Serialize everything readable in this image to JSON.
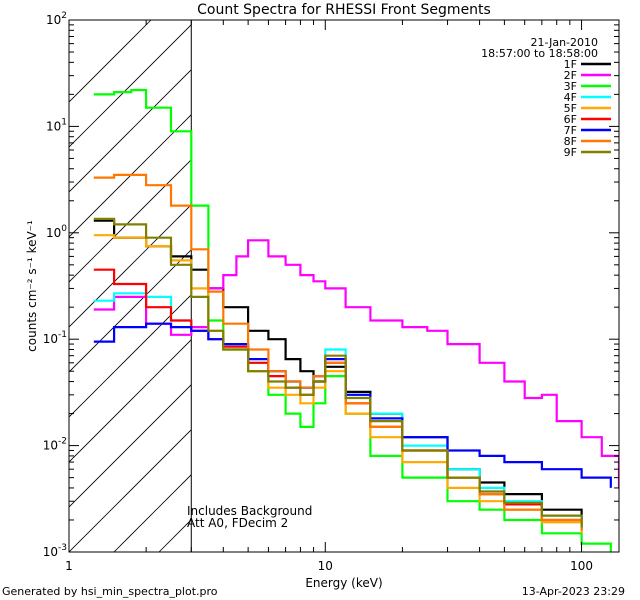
{
  "chart_data": {
    "type": "line",
    "title": "Count Spectra for RHESSI Front Segments",
    "xlabel": "Energy (keV)",
    "ylabel": "counts cm⁻² s⁻¹ keV⁻¹",
    "xscale": "log",
    "yscale": "log",
    "xlim": [
      1,
      140
    ],
    "ylim": [
      0.001,
      100
    ],
    "x_tick_labels": [
      {
        "value": 1,
        "text": "1"
      },
      {
        "value": 10,
        "text": "10"
      },
      {
        "value": 100,
        "text": "100"
      }
    ],
    "y_tick_labels": [
      {
        "value": 0.001,
        "base": "10",
        "exp": "-3"
      },
      {
        "value": 0.01,
        "base": "10",
        "exp": "-2"
      },
      {
        "value": 0.1,
        "base": "10",
        "exp": "-1"
      },
      {
        "value": 1,
        "base": "10",
        "exp": "0"
      },
      {
        "value": 10,
        "base": "10",
        "exp": "1"
      },
      {
        "value": 100,
        "base": "10",
        "exp": "2"
      }
    ],
    "excluded_region": {
      "from": 1,
      "to": 3,
      "style": "hatched"
    },
    "date": "21-Jan-2010",
    "time_range": "18:57:00 to 18:58:00",
    "annotations": [
      "Includes Background",
      "Att A0, FDecim 2"
    ],
    "series": [
      {
        "name": "1F",
        "color": "#000000",
        "points": [
          [
            1.25,
            1.3
          ],
          [
            1.5,
            0.9
          ],
          [
            2,
            0.75
          ],
          [
            2.5,
            0.6
          ],
          [
            3,
            0.45
          ],
          [
            3.5,
            0.3
          ],
          [
            4,
            0.2
          ],
          [
            5,
            0.12
          ],
          [
            6,
            0.1
          ],
          [
            7,
            0.065
          ],
          [
            8,
            0.05
          ],
          [
            9,
            0.04
          ],
          [
            10,
            0.055
          ],
          [
            12,
            0.032
          ],
          [
            15,
            0.02
          ],
          [
            20,
            0.012
          ],
          [
            30,
            0.006
          ],
          [
            40,
            0.0045
          ],
          [
            50,
            0.0035
          ],
          [
            70,
            0.0025
          ],
          [
            100,
            0.002
          ]
        ]
      },
      {
        "name": "2F",
        "color": "#ff00ff",
        "points": [
          [
            1.25,
            0.19
          ],
          [
            1.5,
            0.25
          ],
          [
            2,
            0.14
          ],
          [
            2.5,
            0.11
          ],
          [
            3,
            0.13
          ],
          [
            3.5,
            0.3
          ],
          [
            4,
            0.4
          ],
          [
            4.5,
            0.6
          ],
          [
            5,
            0.85
          ],
          [
            6,
            0.6
          ],
          [
            7,
            0.5
          ],
          [
            8,
            0.4
          ],
          [
            9,
            0.35
          ],
          [
            10,
            0.3
          ],
          [
            12,
            0.2
          ],
          [
            15,
            0.15
          ],
          [
            20,
            0.13
          ],
          [
            25,
            0.12
          ],
          [
            30,
            0.09
          ],
          [
            40,
            0.06
          ],
          [
            50,
            0.04
          ],
          [
            60,
            0.028
          ],
          [
            70,
            0.03
          ],
          [
            80,
            0.017
          ],
          [
            100,
            0.012
          ],
          [
            120,
            0.008
          ],
          [
            140,
            0.004
          ]
        ]
      },
      {
        "name": "3F",
        "color": "#00ff00",
        "points": [
          [
            1.25,
            20
          ],
          [
            1.5,
            21
          ],
          [
            1.75,
            22
          ],
          [
            2,
            15
          ],
          [
            2.5,
            9
          ],
          [
            3,
            1.8
          ],
          [
            3.5,
            0.15
          ],
          [
            4,
            0.08
          ],
          [
            5,
            0.05
          ],
          [
            6,
            0.03
          ],
          [
            7,
            0.02
          ],
          [
            8,
            0.015
          ],
          [
            9,
            0.025
          ],
          [
            10,
            0.045
          ],
          [
            12,
            0.02
          ],
          [
            15,
            0.008
          ],
          [
            20,
            0.005
          ],
          [
            30,
            0.003
          ],
          [
            40,
            0.0025
          ],
          [
            50,
            0.002
          ],
          [
            70,
            0.0015
          ],
          [
            100,
            0.0012
          ],
          [
            130,
            0.001
          ]
        ]
      },
      {
        "name": "4F",
        "color": "#00ffff",
        "points": [
          [
            1.25,
            0.23
          ],
          [
            1.5,
            0.27
          ],
          [
            2,
            0.25
          ],
          [
            2.5,
            0.15
          ],
          [
            3,
            0.12
          ],
          [
            3.5,
            0.1
          ],
          [
            4,
            0.09
          ],
          [
            5,
            0.06
          ],
          [
            6,
            0.045
          ],
          [
            7,
            0.04
          ],
          [
            8,
            0.035
          ],
          [
            9,
            0.045
          ],
          [
            10,
            0.08
          ],
          [
            12,
            0.03
          ],
          [
            15,
            0.02
          ],
          [
            20,
            0.01
          ],
          [
            30,
            0.006
          ],
          [
            40,
            0.004
          ],
          [
            50,
            0.003
          ],
          [
            70,
            0.0022
          ],
          [
            100,
            0.0017
          ]
        ]
      },
      {
        "name": "5F",
        "color": "#ffaa00",
        "points": [
          [
            1.25,
            0.95
          ],
          [
            1.5,
            0.9
          ],
          [
            2,
            0.75
          ],
          [
            2.5,
            0.55
          ],
          [
            3,
            0.3
          ],
          [
            3.5,
            0.12
          ],
          [
            4,
            0.08
          ],
          [
            5,
            0.05
          ],
          [
            6,
            0.035
          ],
          [
            7,
            0.03
          ],
          [
            8,
            0.025
          ],
          [
            9,
            0.035
          ],
          [
            10,
            0.05
          ],
          [
            12,
            0.02
          ],
          [
            15,
            0.012
          ],
          [
            20,
            0.007
          ],
          [
            30,
            0.004
          ],
          [
            40,
            0.003
          ],
          [
            50,
            0.0025
          ],
          [
            70,
            0.0019
          ],
          [
            100,
            0.0015
          ]
        ]
      },
      {
        "name": "6F",
        "color": "#ff0000",
        "points": [
          [
            1.25,
            0.45
          ],
          [
            1.5,
            0.33
          ],
          [
            2,
            0.2
          ],
          [
            2.5,
            0.15
          ],
          [
            3,
            0.12
          ],
          [
            3.5,
            0.1
          ],
          [
            4,
            0.085
          ],
          [
            5,
            0.06
          ],
          [
            6,
            0.045
          ],
          [
            7,
            0.035
          ],
          [
            8,
            0.03
          ],
          [
            9,
            0.04
          ],
          [
            10,
            0.06
          ],
          [
            12,
            0.025
          ],
          [
            15,
            0.015
          ],
          [
            20,
            0.009
          ],
          [
            30,
            0.005
          ],
          [
            40,
            0.0035
          ],
          [
            50,
            0.0028
          ],
          [
            70,
            0.002
          ],
          [
            100,
            0.0016
          ]
        ]
      },
      {
        "name": "7F",
        "color": "#0000ff",
        "points": [
          [
            1.25,
            0.095
          ],
          [
            1.5,
            0.13
          ],
          [
            2,
            0.14
          ],
          [
            2.5,
            0.13
          ],
          [
            3,
            0.12
          ],
          [
            3.5,
            0.1
          ],
          [
            4,
            0.09
          ],
          [
            5,
            0.065
          ],
          [
            6,
            0.05
          ],
          [
            7,
            0.04
          ],
          [
            8,
            0.035
          ],
          [
            9,
            0.045
          ],
          [
            10,
            0.065
          ],
          [
            12,
            0.03
          ],
          [
            15,
            0.018
          ],
          [
            20,
            0.012
          ],
          [
            30,
            0.009
          ],
          [
            40,
            0.008
          ],
          [
            50,
            0.007
          ],
          [
            70,
            0.006
          ],
          [
            100,
            0.005
          ],
          [
            130,
            0.004
          ]
        ]
      },
      {
        "name": "8F",
        "color": "#ff7700",
        "points": [
          [
            1.25,
            3.3
          ],
          [
            1.5,
            3.5
          ],
          [
            2,
            2.8
          ],
          [
            2.5,
            1.8
          ],
          [
            3,
            0.7
          ],
          [
            3.5,
            0.28
          ],
          [
            4,
            0.14
          ],
          [
            5,
            0.08
          ],
          [
            6,
            0.05
          ],
          [
            7,
            0.04
          ],
          [
            8,
            0.035
          ],
          [
            9,
            0.045
          ],
          [
            10,
            0.06
          ],
          [
            12,
            0.025
          ],
          [
            15,
            0.015
          ],
          [
            20,
            0.009
          ],
          [
            30,
            0.005
          ],
          [
            40,
            0.0035
          ],
          [
            50,
            0.0025
          ],
          [
            70,
            0.002
          ],
          [
            100,
            0.0016
          ]
        ]
      },
      {
        "name": "9F",
        "color": "#808000",
        "points": [
          [
            1.25,
            1.35
          ],
          [
            1.5,
            1.2
          ],
          [
            2,
            0.9
          ],
          [
            2.5,
            0.5
          ],
          [
            3,
            0.25
          ],
          [
            3.5,
            0.12
          ],
          [
            4,
            0.08
          ],
          [
            5,
            0.05
          ],
          [
            6,
            0.04
          ],
          [
            7,
            0.035
          ],
          [
            8,
            0.03
          ],
          [
            9,
            0.04
          ],
          [
            10,
            0.07
          ],
          [
            12,
            0.028
          ],
          [
            15,
            0.017
          ],
          [
            20,
            0.009
          ],
          [
            30,
            0.005
          ],
          [
            40,
            0.0037
          ],
          [
            50,
            0.0029
          ],
          [
            70,
            0.0022
          ],
          [
            100,
            0.0017
          ]
        ]
      }
    ]
  },
  "footer": {
    "generated_by": "Generated by hsi_min_spectra_plot.pro",
    "timestamp": "13-Apr-2023 23:29"
  }
}
